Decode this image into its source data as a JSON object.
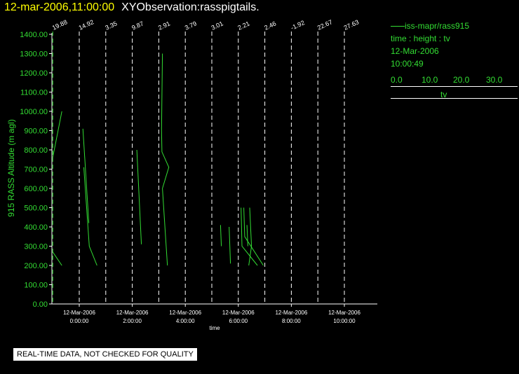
{
  "header": {
    "date_time": "12-mar-2006,11:00:00",
    "observation": "XYObservation:rasspigtails."
  },
  "legend": {
    "series_label": "iss-mapr/rass915",
    "var_line": "time : height : tv",
    "date": "12-Mar-2006",
    "time": "10:00:49",
    "scale_ticks": [
      "0.0",
      "10.0",
      "20.0",
      "30.0"
    ],
    "scale_label": "tv"
  },
  "notice": "REAL-TIME DATA, NOT CHECKED FOR QUALITY",
  "colors": {
    "series": "#33dd33",
    "axis": "#ffffff",
    "title_date": "#ffff00",
    "background": "#000000"
  },
  "chart_data": {
    "type": "line",
    "ylabel": "915 RASS Altitude (m agl)",
    "xlabel": "time",
    "ylim": [
      0,
      1400
    ],
    "xlim_hours": [
      -1,
      11.7
    ],
    "yticks": [
      "0.00",
      "100.00",
      "200.00",
      "300.00",
      "400.00",
      "500.00",
      "600.00",
      "700.00",
      "800.00",
      "900.00",
      "1000.00",
      "1100.00",
      "1200.00",
      "1300.00",
      "1400.00"
    ],
    "xticks": [
      {
        "hour": 0,
        "date": "12-Mar-2006",
        "time": "0:00:00"
      },
      {
        "hour": 2,
        "date": "12-Mar-2006",
        "time": "2:00:00"
      },
      {
        "hour": 4,
        "date": "12-Mar-2006",
        "time": "4:00:00"
      },
      {
        "hour": 6,
        "date": "12-Mar-2006",
        "time": "6:00:00"
      },
      {
        "hour": 8,
        "date": "12-Mar-2006",
        "time": "8:00:00"
      },
      {
        "hour": 10,
        "date": "12-Mar-2006",
        "time": "10:00:00"
      }
    ],
    "profiles": [
      {
        "hour": -1,
        "label": "19.88",
        "segments": [
          [
            [
              0,
              760
            ],
            [
              1,
              1000
            ]
          ],
          [
            [
              0,
              270
            ],
            [
              1,
              200
            ]
          ]
        ]
      },
      {
        "hour": 0,
        "label": "14.92",
        "segments": [
          [
            [
              0.4,
              910
            ],
            [
              1.05,
              420
            ]
          ],
          [
            [
              0.5,
              710
            ],
            [
              1.1,
              300
            ],
            [
              1.95,
              200
            ]
          ]
        ]
      },
      {
        "hour": 1,
        "label": "3.35",
        "segments": []
      },
      {
        "hour": 2,
        "label": "9.87",
        "segments": [
          [
            [
              0.5,
              800
            ],
            [
              1.0,
              310
            ]
          ]
        ]
      },
      {
        "hour": 3,
        "label": "2.91",
        "segments": [
          [
            [
              0.4,
              1300
            ],
            [
              0.3,
              900
            ],
            [
              0.35,
              790
            ],
            [
              1.1,
              710
            ],
            [
              0.4,
              600
            ],
            [
              0.95,
              200
            ]
          ]
        ]
      },
      {
        "hour": 4,
        "label": "3.79",
        "segments": []
      },
      {
        "hour": 5,
        "label": "3.01",
        "segments": [
          [
            [
              0.95,
              410
            ],
            [
              1.05,
              300
            ]
          ],
          [
            [
              1.9,
              400
            ],
            [
              2.05,
              210
            ]
          ]
        ]
      },
      {
        "hour": 6,
        "label": "2.21",
        "segments": [
          [
            [
              0.3,
              500
            ],
            [
              0.4,
              300
            ],
            [
              2.1,
              200
            ]
          ],
          [
            [
              0.6,
              500
            ],
            [
              0.7,
              350
            ],
            [
              2.75,
              200
            ]
          ],
          [
            [
              0.95,
              410
            ],
            [
              1.05,
              300
            ]
          ],
          [
            [
              1.25,
              500
            ],
            [
              1.45,
              300
            ],
            [
              1.15,
              200
            ]
          ]
        ]
      },
      {
        "hour": 7,
        "label": "2.46",
        "segments": []
      },
      {
        "hour": 8,
        "label": "-1.92",
        "segments": []
      },
      {
        "hour": 9,
        "label": "22.67",
        "segments": []
      },
      {
        "hour": 10,
        "label": "27.63",
        "segments": []
      }
    ]
  }
}
